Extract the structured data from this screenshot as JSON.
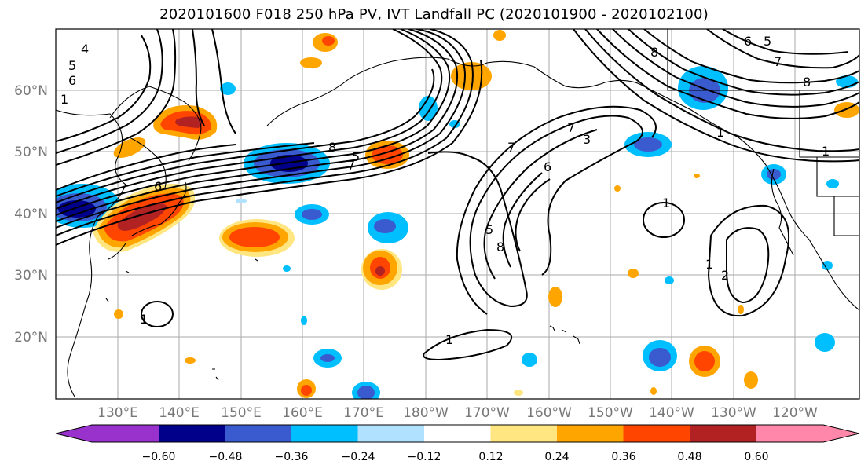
{
  "title": "2020101600 F018 250 hPa PV, IVT Landfall PC (2020101900 - 2020102100)",
  "lat_labels": [
    "60°N",
    "50°N",
    "40°N",
    "30°N",
    "20°N"
  ],
  "lon_labels": [
    "130°E",
    "140°E",
    "150°E",
    "160°E",
    "170°E",
    "180°W",
    "170°W",
    "160°W",
    "150°W",
    "140°W",
    "130°W",
    "120°W"
  ],
  "colorbar": {
    "ticks": [
      "−0.60",
      "−0.48",
      "−0.36",
      "−0.24",
      "−0.12",
      "0.12",
      "0.24",
      "0.36",
      "0.48",
      "0.60"
    ],
    "colors": [
      "#9932cc",
      "#00008b",
      "#3a5bd0",
      "#00bfff",
      "#b0e2ff",
      "#ffffff",
      "#ffe680",
      "#ffa500",
      "#ff4500",
      "#b22222",
      "#ff88aa"
    ]
  },
  "contour_labels": [
    "4",
    "5",
    "6",
    "1",
    "8",
    "7",
    "6",
    "5",
    "7",
    "8",
    "7",
    "6",
    "5",
    "1",
    "1",
    "1",
    "2",
    "1",
    "1",
    "8",
    "6",
    "5",
    "7",
    "8",
    "1",
    "3"
  ],
  "colors": {
    "negative_strong": "#00008b",
    "negative": "#3a5bd0",
    "negative_light": "#00bfff",
    "positive_light": "#ffa500",
    "positive": "#ff4500",
    "positive_strong": "#b22222"
  }
}
